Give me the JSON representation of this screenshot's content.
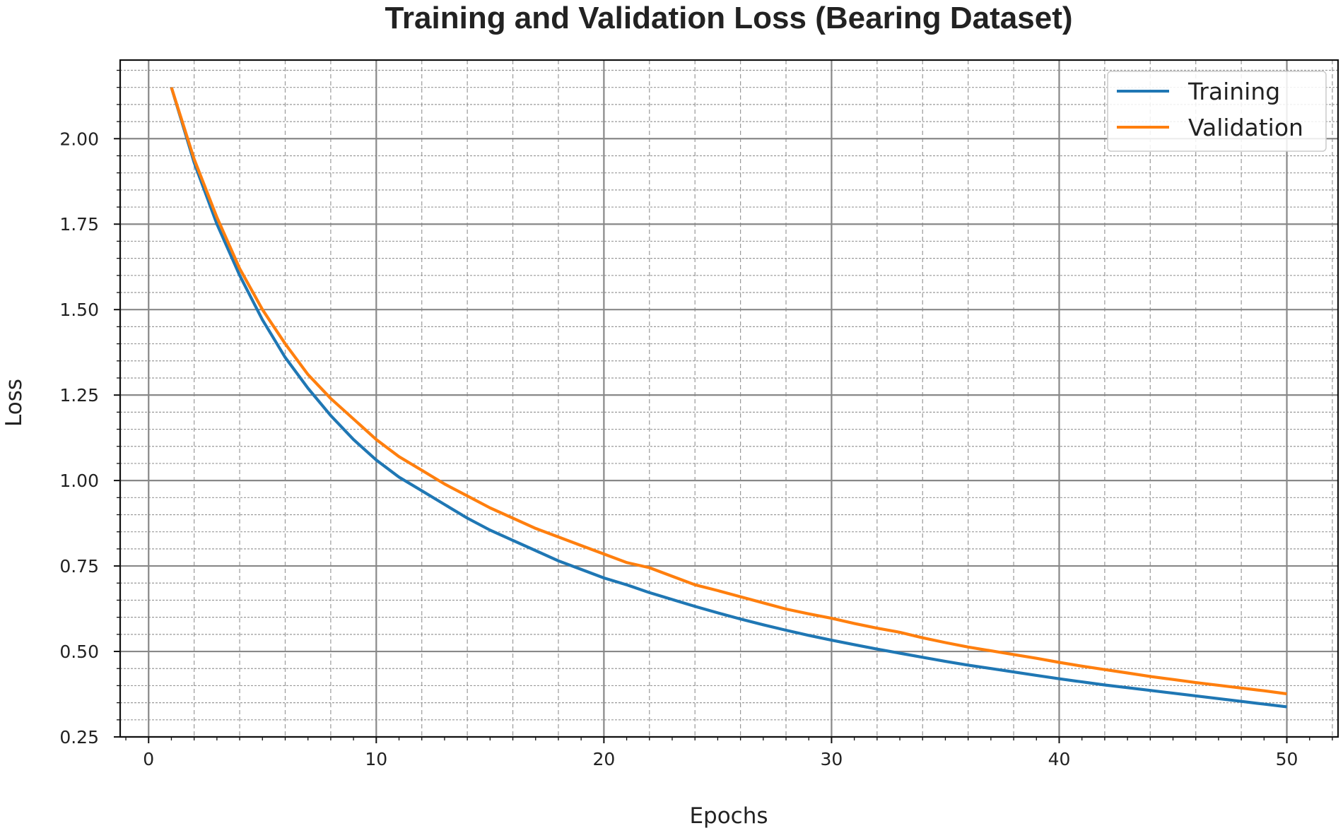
{
  "chart_data": {
    "type": "line",
    "title": "Training and Validation Loss (Bearing Dataset)",
    "xlabel": "Epochs",
    "ylabel": "Loss",
    "xlim": [
      -1.25,
      52.25
    ],
    "ylim": [
      0.25,
      2.23
    ],
    "xticks": [
      0,
      10,
      20,
      30,
      40,
      50
    ],
    "xtick_labels": [
      "0",
      "10",
      "20",
      "30",
      "40",
      "50"
    ],
    "yticks": [
      0.25,
      0.5,
      0.75,
      1.0,
      1.25,
      1.5,
      1.75,
      2.0
    ],
    "ytick_labels": [
      "0.25",
      "0.50",
      "0.75",
      "1.00",
      "1.25",
      "1.50",
      "1.75",
      "2.00"
    ],
    "grid": {
      "major": true,
      "minor": true
    },
    "legend_position": "top-right",
    "x": [
      1,
      2,
      3,
      4,
      5,
      6,
      7,
      8,
      9,
      10,
      11,
      12,
      13,
      14,
      15,
      16,
      17,
      18,
      19,
      20,
      21,
      22,
      23,
      24,
      25,
      26,
      27,
      28,
      29,
      30,
      31,
      32,
      33,
      34,
      35,
      36,
      37,
      38,
      39,
      40,
      41,
      42,
      43,
      44,
      45,
      46,
      47,
      48,
      49,
      50
    ],
    "series": [
      {
        "name": "Training",
        "color": "#1f77b4",
        "values": [
          2.15,
          1.93,
          1.75,
          1.6,
          1.47,
          1.36,
          1.27,
          1.19,
          1.12,
          1.06,
          1.01,
          0.97,
          0.93,
          0.89,
          0.855,
          0.825,
          0.795,
          0.765,
          0.74,
          0.715,
          0.695,
          0.672,
          0.652,
          0.632,
          0.613,
          0.595,
          0.578,
          0.562,
          0.547,
          0.533,
          0.52,
          0.507,
          0.495,
          0.483,
          0.471,
          0.46,
          0.45,
          0.44,
          0.43,
          0.42,
          0.411,
          0.402,
          0.394,
          0.386,
          0.378,
          0.37,
          0.362,
          0.354,
          0.346,
          0.338
        ]
      },
      {
        "name": "Validation",
        "color": "#ff7f0e",
        "values": [
          2.15,
          1.94,
          1.77,
          1.62,
          1.5,
          1.4,
          1.31,
          1.24,
          1.18,
          1.12,
          1.07,
          1.03,
          0.99,
          0.955,
          0.92,
          0.89,
          0.86,
          0.835,
          0.81,
          0.785,
          0.76,
          0.745,
          0.72,
          0.695,
          0.678,
          0.66,
          0.642,
          0.624,
          0.61,
          0.597,
          0.582,
          0.568,
          0.556,
          0.54,
          0.526,
          0.513,
          0.502,
          0.491,
          0.48,
          0.468,
          0.457,
          0.447,
          0.437,
          0.427,
          0.418,
          0.409,
          0.401,
          0.393,
          0.385,
          0.376
        ]
      }
    ]
  }
}
